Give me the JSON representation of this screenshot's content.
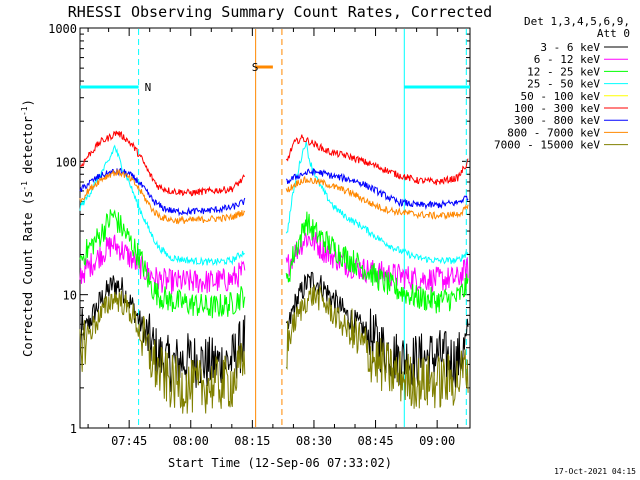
{
  "chart_data": {
    "type": "line",
    "title": "RHESSI Observing Summary Count Rates, Corrected",
    "xlabel": "Start Time (12-Sep-06 07:33:02)",
    "ylabel_main": "Corrected Count Rate (s",
    "ylabel_sup1": "-1",
    "ylabel_mid": " detector",
    "ylabel_sup2": "-1",
    "ylabel_end": ")",
    "yscale": "log",
    "ylim": [
      1,
      1000
    ],
    "xlim": [
      "07:33:02",
      "09:08:00"
    ],
    "xlim_min": [
      453.03,
      548.0
    ],
    "y_ticks": [
      {
        "value": 1,
        "label": "1"
      },
      {
        "value": 10,
        "label": "10"
      },
      {
        "value": 100,
        "label": "100"
      },
      {
        "value": 1000,
        "label": "1000"
      }
    ],
    "x_ticks": [
      {
        "value": 465,
        "label": "07:45"
      },
      {
        "value": 480,
        "label": "08:00"
      },
      {
        "value": 495,
        "label": "08:15"
      },
      {
        "value": 510,
        "label": "08:30"
      },
      {
        "value": 525,
        "label": "08:45"
      },
      {
        "value": 540,
        "label": "09:00"
      }
    ],
    "legend_header": [
      "Det 1,3,4,5,6,9,",
      "Att 0"
    ],
    "gaps_min": [
      [
        493.2,
        503.1
      ]
    ],
    "series": [
      {
        "name": "3 - 6 keV",
        "color": "#000000",
        "points": [
          [
            453.0,
            4.5
          ],
          [
            455,
            6
          ],
          [
            458,
            9
          ],
          [
            461,
            12
          ],
          [
            463,
            11.5
          ],
          [
            466,
            8
          ],
          [
            469,
            5
          ],
          [
            472,
            3.5
          ],
          [
            475,
            3
          ],
          [
            480,
            3.3
          ],
          [
            485,
            3
          ],
          [
            490,
            3.2
          ],
          [
            493.0,
            4.5
          ],
          [
            503.4,
            5
          ],
          [
            505,
            8
          ],
          [
            508,
            12
          ],
          [
            510,
            13
          ],
          [
            512,
            11.5
          ],
          [
            515,
            9
          ],
          [
            518,
            7
          ],
          [
            522,
            5.5
          ],
          [
            526,
            4.2
          ],
          [
            530,
            3.4
          ],
          [
            535,
            3.2
          ],
          [
            540,
            3.5
          ],
          [
            545,
            3.2
          ],
          [
            547.6,
            4.5
          ]
        ]
      },
      {
        "name": "6 - 12 keV",
        "color": "#ff00ff",
        "points": [
          [
            453.0,
            14
          ],
          [
            455,
            16
          ],
          [
            458,
            20
          ],
          [
            461,
            24
          ],
          [
            463,
            22
          ],
          [
            466,
            18
          ],
          [
            469,
            15
          ],
          [
            472,
            13
          ],
          [
            475,
            12.5
          ],
          [
            480,
            12.5
          ],
          [
            485,
            12.5
          ],
          [
            490,
            13
          ],
          [
            493.0,
            15
          ],
          [
            503.4,
            16
          ],
          [
            505,
            20
          ],
          [
            508,
            27
          ],
          [
            510,
            25
          ],
          [
            512,
            22
          ],
          [
            515,
            19
          ],
          [
            518,
            17
          ],
          [
            522,
            15.5
          ],
          [
            526,
            14.5
          ],
          [
            530,
            14
          ],
          [
            535,
            13.2
          ],
          [
            540,
            13
          ],
          [
            545,
            13.2
          ],
          [
            547.6,
            16
          ]
        ]
      },
      {
        "name": "12 - 25 keV",
        "color": "#00ff00",
        "points": [
          [
            453.0,
            18
          ],
          [
            455,
            22
          ],
          [
            458,
            28
          ],
          [
            461,
            40
          ],
          [
            462.5,
            34
          ],
          [
            465,
            26
          ],
          [
            468,
            18
          ],
          [
            470,
            12
          ],
          [
            472,
            10
          ],
          [
            475,
            9
          ],
          [
            480,
            8.5
          ],
          [
            485,
            8
          ],
          [
            490,
            8.5
          ],
          [
            493.0,
            10
          ],
          [
            503.4,
            12
          ],
          [
            505,
            20
          ],
          [
            507,
            28
          ],
          [
            508,
            37
          ],
          [
            509,
            32
          ],
          [
            511,
            28
          ],
          [
            513,
            25
          ],
          [
            515,
            22
          ],
          [
            518,
            19
          ],
          [
            522,
            16
          ],
          [
            526,
            13
          ],
          [
            530,
            11
          ],
          [
            535,
            9.5
          ],
          [
            540,
            9
          ],
          [
            545,
            9.5
          ],
          [
            547.6,
            12
          ]
        ]
      },
      {
        "name": "25 - 50 keV",
        "color": "#00ffff",
        "points": [
          [
            453.0,
            45
          ],
          [
            455,
            55
          ],
          [
            458,
            80
          ],
          [
            460,
            100
          ],
          [
            461.5,
            130
          ],
          [
            463,
            95
          ],
          [
            465,
            70
          ],
          [
            467,
            48
          ],
          [
            470,
            30
          ],
          [
            472,
            23
          ],
          [
            475,
            19
          ],
          [
            480,
            18
          ],
          [
            485,
            17.5
          ],
          [
            490,
            18
          ],
          [
            493.0,
            21
          ],
          [
            503.4,
            28
          ],
          [
            505,
            60
          ],
          [
            507,
            110
          ],
          [
            508,
            140
          ],
          [
            509,
            100
          ],
          [
            511,
            70
          ],
          [
            513,
            55
          ],
          [
            515,
            45
          ],
          [
            518,
            38
          ],
          [
            522,
            32
          ],
          [
            526,
            26
          ],
          [
            530,
            22
          ],
          [
            535,
            19
          ],
          [
            540,
            18
          ],
          [
            545,
            18
          ],
          [
            547.6,
            21
          ]
        ]
      },
      {
        "name": "50 - 100 keV",
        "color": "#ffff00",
        "hidden": true,
        "points": []
      },
      {
        "name": "100 - 300 keV",
        "color": "#ff0000",
        "points": [
          [
            453.0,
            90
          ],
          [
            455,
            110
          ],
          [
            458,
            140
          ],
          [
            460,
            150
          ],
          [
            462,
            165
          ],
          [
            464,
            150
          ],
          [
            466,
            130
          ],
          [
            468,
            105
          ],
          [
            470,
            80
          ],
          [
            472,
            65
          ],
          [
            475,
            60
          ],
          [
            480,
            58
          ],
          [
            485,
            60
          ],
          [
            490,
            62
          ],
          [
            493.0,
            75
          ],
          [
            503.4,
            100
          ],
          [
            505,
            135
          ],
          [
            507,
            150
          ],
          [
            509,
            140
          ],
          [
            511,
            130
          ],
          [
            513,
            120
          ],
          [
            515,
            115
          ],
          [
            518,
            110
          ],
          [
            522,
            100
          ],
          [
            526,
            90
          ],
          [
            530,
            80
          ],
          [
            535,
            72
          ],
          [
            540,
            70
          ],
          [
            545,
            75
          ],
          [
            547.6,
            100
          ]
        ]
      },
      {
        "name": "300 - 800 keV",
        "color": "#0000ff",
        "points": [
          [
            453.0,
            60
          ],
          [
            455,
            68
          ],
          [
            458,
            78
          ],
          [
            461,
            83
          ],
          [
            463,
            84
          ],
          [
            465,
            80
          ],
          [
            467,
            72
          ],
          [
            469,
            60
          ],
          [
            471,
            50
          ],
          [
            473,
            45
          ],
          [
            476,
            42
          ],
          [
            480,
            42
          ],
          [
            485,
            43
          ],
          [
            490,
            45
          ],
          [
            493.0,
            50
          ],
          [
            503.4,
            70
          ],
          [
            505,
            75
          ],
          [
            507,
            80
          ],
          [
            509,
            83
          ],
          [
            511,
            83
          ],
          [
            513,
            80
          ],
          [
            515,
            77
          ],
          [
            518,
            74
          ],
          [
            521,
            70
          ],
          [
            524,
            63
          ],
          [
            527,
            56
          ],
          [
            530,
            50
          ],
          [
            535,
            47
          ],
          [
            540,
            47
          ],
          [
            545,
            49
          ],
          [
            547.6,
            55
          ]
        ]
      },
      {
        "name": "800 - 7000 keV",
        "color": "#ff8800",
        "points": [
          [
            453.0,
            50
          ],
          [
            455,
            60
          ],
          [
            458,
            73
          ],
          [
            461,
            82
          ],
          [
            463,
            82
          ],
          [
            465,
            75
          ],
          [
            467,
            65
          ],
          [
            469,
            52
          ],
          [
            471,
            42
          ],
          [
            473,
            38
          ],
          [
            476,
            36
          ],
          [
            480,
            36
          ],
          [
            485,
            37
          ],
          [
            490,
            38
          ],
          [
            493.0,
            42
          ],
          [
            503.4,
            60
          ],
          [
            505,
            66
          ],
          [
            507,
            72
          ],
          [
            509,
            72
          ],
          [
            511,
            70
          ],
          [
            513,
            68
          ],
          [
            515,
            64
          ],
          [
            518,
            60
          ],
          [
            521,
            54
          ],
          [
            524,
            48
          ],
          [
            527,
            44
          ],
          [
            530,
            42
          ],
          [
            535,
            40
          ],
          [
            540,
            39
          ],
          [
            545,
            40
          ],
          [
            547.6,
            45
          ]
        ]
      },
      {
        "name": "7000 - 15000 keV",
        "color": "#808000",
        "points": [
          [
            453.0,
            4
          ],
          [
            455,
            5
          ],
          [
            458,
            7
          ],
          [
            461,
            9.5
          ],
          [
            463,
            9
          ],
          [
            466,
            7
          ],
          [
            469,
            4
          ],
          [
            472,
            2.7
          ],
          [
            475,
            2.2
          ],
          [
            480,
            2
          ],
          [
            485,
            2.1
          ],
          [
            490,
            2.2
          ],
          [
            493.0,
            3
          ],
          [
            503.4,
            4
          ],
          [
            505,
            6
          ],
          [
            508,
            9
          ],
          [
            510,
            10
          ],
          [
            512,
            9
          ],
          [
            515,
            7
          ],
          [
            518,
            5.5
          ],
          [
            522,
            4
          ],
          [
            526,
            3
          ],
          [
            530,
            2.5
          ],
          [
            535,
            2.2
          ],
          [
            540,
            2.2
          ],
          [
            545,
            2.3
          ],
          [
            547.6,
            3
          ]
        ]
      }
    ],
    "flags": [
      {
        "name": "N",
        "color": "#00ffff",
        "label": "N",
        "x_min": 467.3,
        "extent_min": [
          453.03,
          467.3
        ],
        "y_fraction": 0.85
      },
      {
        "name": "S",
        "color": "#ff8800",
        "label": "S",
        "x_min": 497.3,
        "extent_min": [
          495.8,
          500.0
        ],
        "y_fraction": 0.9
      },
      {
        "name": "N2",
        "color": "#00ffff",
        "label": "",
        "x_min": 532.0,
        "extent_min": [
          532.0,
          548.0
        ],
        "y_fraction": 0.85
      }
    ],
    "vlines": [
      {
        "x_min": 467.3,
        "color": "#00ffff",
        "style": "dashed"
      },
      {
        "x_min": 495.8,
        "color": "#ff8800",
        "style": "solid"
      },
      {
        "x_min": 502.2,
        "color": "#ff8800",
        "style": "dashed"
      },
      {
        "x_min": 532.0,
        "color": "#00ffff",
        "style": "solid"
      },
      {
        "x_min": 547.1,
        "color": "#00ffff",
        "style": "dashed"
      }
    ]
  },
  "timestamp": "17-Oct-2021 04:15"
}
